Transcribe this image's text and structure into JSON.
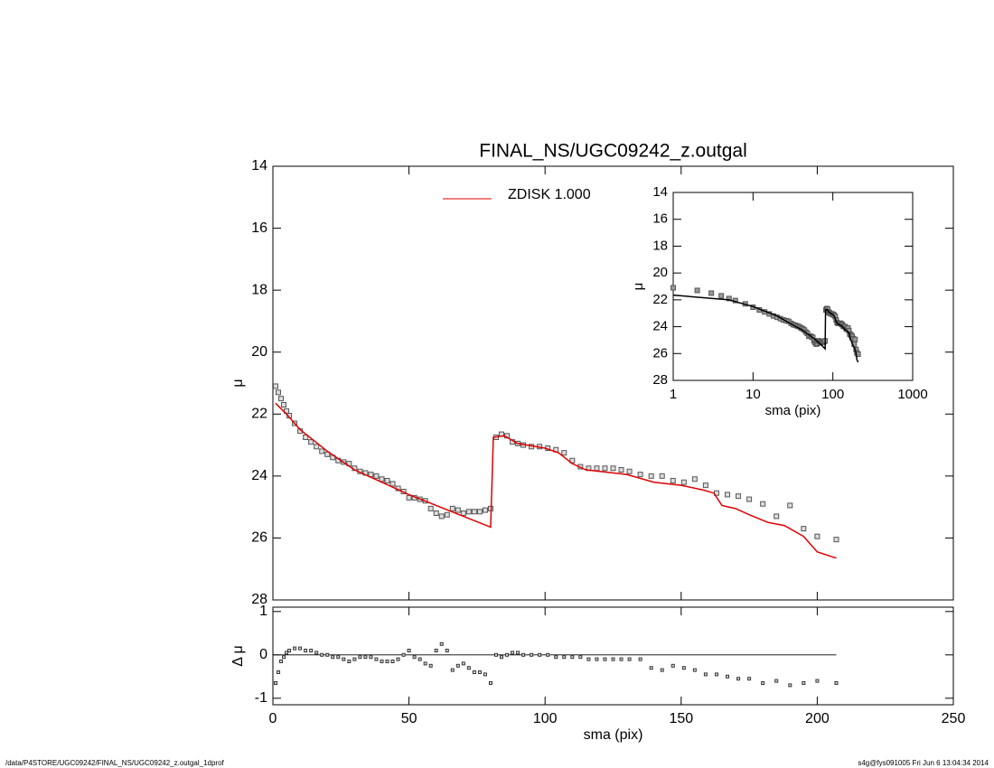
{
  "chart_data": [
    {
      "type": "line",
      "title": "FINAL_NS/UGC09242_z.outgal",
      "y_label": "μ",
      "xlim": [
        0,
        250
      ],
      "xticks": [
        0,
        50,
        100,
        150,
        200,
        250
      ],
      "ylim": [
        28,
        14
      ],
      "yticks": [
        14,
        16,
        18,
        20,
        22,
        24,
        26,
        28
      ],
      "legend": "top",
      "series": [
        {
          "color": "#555555",
          "marker": "square",
          "x": [
            1,
            2,
            3,
            4,
            5,
            6,
            8,
            10,
            12,
            14,
            16,
            18,
            20,
            22,
            24,
            26,
            28,
            30,
            32,
            34,
            36,
            38,
            40,
            42,
            44,
            46,
            48,
            50,
            52,
            54,
            56,
            58,
            60,
            62,
            64,
            66,
            68,
            70,
            72,
            74,
            76,
            78,
            80,
            82,
            84,
            86,
            88,
            90,
            92,
            95,
            98,
            101,
            104,
            107,
            110,
            113,
            116,
            119,
            122,
            125,
            128,
            131,
            135,
            139,
            143,
            147,
            151,
            155,
            159,
            163,
            167,
            171,
            175,
            180,
            185,
            190,
            195,
            200,
            207
          ],
          "values": [
            21.1,
            21.3,
            21.5,
            21.7,
            21.9,
            22.05,
            22.3,
            22.55,
            22.75,
            22.9,
            23.05,
            23.2,
            23.3,
            23.4,
            23.5,
            23.55,
            23.6,
            23.75,
            23.85,
            23.9,
            23.95,
            24.0,
            24.1,
            24.15,
            24.25,
            24.4,
            24.5,
            24.7,
            24.7,
            24.75,
            24.8,
            25.05,
            25.2,
            25.3,
            25.25,
            25.05,
            25.1,
            25.2,
            25.15,
            25.15,
            25.15,
            25.1,
            25.05,
            22.75,
            22.65,
            22.7,
            22.9,
            22.95,
            23.0,
            23.05,
            23.05,
            23.1,
            23.15,
            23.25,
            23.5,
            23.7,
            23.75,
            23.75,
            23.75,
            23.75,
            23.8,
            23.85,
            23.95,
            24.0,
            24.0,
            24.15,
            24.2,
            24.1,
            24.3,
            24.55,
            24.6,
            24.65,
            24.75,
            24.9,
            25.3,
            24.95,
            25.7,
            25.95,
            26.05
          ]
        },
        {
          "name": "ZDISK  1.000",
          "color": "#e00000",
          "x": [
            1,
            5,
            10,
            20,
            30,
            40,
            50,
            60,
            70,
            80,
            81,
            85,
            90,
            100,
            105,
            110,
            115,
            130,
            140,
            150,
            158,
            162,
            165,
            170,
            175,
            182,
            188,
            195,
            200,
            207
          ],
          "values": [
            21.65,
            22.0,
            22.5,
            23.2,
            23.8,
            24.2,
            24.6,
            24.95,
            25.3,
            25.65,
            22.75,
            22.7,
            22.95,
            23.1,
            23.25,
            23.6,
            23.8,
            23.95,
            24.2,
            24.3,
            24.45,
            24.55,
            24.95,
            25.05,
            25.25,
            25.5,
            25.6,
            25.95,
            26.45,
            26.65
          ]
        }
      ]
    },
    {
      "type": "scatter",
      "x_label": "sma (pix)",
      "y_label": "Δ μ",
      "xlim": [
        0,
        250
      ],
      "xticks": [
        0,
        50,
        100,
        150,
        200,
        250
      ],
      "ylim": [
        -1.15,
        1.1
      ],
      "yticks": [
        -1,
        0,
        1
      ],
      "hline": 0,
      "series": [
        {
          "color": "#333333",
          "marker": "square",
          "x": [
            1,
            2,
            3,
            4,
            5,
            6,
            8,
            10,
            12,
            14,
            16,
            18,
            20,
            22,
            24,
            26,
            28,
            30,
            32,
            34,
            36,
            38,
            40,
            42,
            44,
            46,
            48,
            50,
            52,
            54,
            56,
            58,
            60,
            62,
            64,
            66,
            68,
            70,
            72,
            74,
            76,
            78,
            80,
            82,
            84,
            86,
            88,
            90,
            92,
            95,
            98,
            101,
            104,
            107,
            110,
            113,
            116,
            119,
            122,
            125,
            128,
            131,
            135,
            139,
            143,
            147,
            151,
            155,
            159,
            163,
            167,
            171,
            175,
            180,
            185,
            190,
            195,
            200,
            207
          ],
          "values": [
            -0.65,
            -0.4,
            -0.15,
            -0.05,
            0.05,
            0.1,
            0.15,
            0.15,
            0.1,
            0.1,
            0.05,
            0.0,
            0.0,
            -0.05,
            -0.05,
            -0.1,
            -0.15,
            -0.1,
            -0.05,
            -0.05,
            -0.05,
            -0.1,
            -0.15,
            -0.15,
            -0.15,
            -0.1,
            0.0,
            0.1,
            -0.05,
            -0.1,
            -0.2,
            -0.25,
            0.1,
            0.25,
            0.1,
            -0.35,
            -0.25,
            -0.2,
            -0.3,
            -0.4,
            -0.4,
            -0.45,
            -0.65,
            0.0,
            -0.05,
            0.0,
            0.05,
            0.05,
            0.0,
            0.0,
            0.0,
            0.0,
            -0.05,
            -0.05,
            -0.05,
            -0.05,
            -0.1,
            -0.1,
            -0.1,
            -0.1,
            -0.1,
            -0.1,
            -0.1,
            -0.3,
            -0.35,
            -0.25,
            -0.3,
            -0.35,
            -0.45,
            -0.45,
            -0.5,
            -0.55,
            -0.55,
            -0.65,
            -0.6,
            -0.7,
            -0.65,
            -0.6,
            -0.65
          ]
        }
      ]
    },
    {
      "type": "line",
      "xscale": "log",
      "x_label": "sma (pix)",
      "y_label": "μ",
      "xlim": [
        1,
        1000
      ],
      "xticks": [
        1,
        10,
        100,
        1000
      ],
      "ylim": [
        28,
        14
      ],
      "yticks": [
        14,
        16,
        18,
        20,
        22,
        24,
        26,
        28
      ],
      "series": [
        {
          "color": "#555555",
          "marker": "square",
          "x": [
            1,
            2,
            3,
            4,
            5,
            6,
            8,
            10,
            12,
            14,
            16,
            18,
            20,
            22,
            24,
            26,
            28,
            30,
            32,
            34,
            36,
            38,
            40,
            42,
            44,
            46,
            48,
            50,
            52,
            54,
            56,
            58,
            60,
            62,
            64,
            66,
            68,
            70,
            72,
            74,
            76,
            78,
            80,
            82,
            84,
            86,
            88,
            90,
            92,
            95,
            98,
            101,
            104,
            107,
            110,
            113,
            116,
            119,
            122,
            125,
            128,
            131,
            135,
            139,
            143,
            147,
            151,
            155,
            159,
            163,
            167,
            171,
            175,
            180,
            185,
            190,
            195,
            200,
            207
          ],
          "values": [
            21.1,
            21.3,
            21.5,
            21.7,
            21.9,
            22.05,
            22.3,
            22.55,
            22.75,
            22.9,
            23.05,
            23.2,
            23.3,
            23.4,
            23.5,
            23.55,
            23.6,
            23.75,
            23.85,
            23.9,
            23.95,
            24.0,
            24.1,
            24.15,
            24.25,
            24.4,
            24.5,
            24.7,
            24.7,
            24.75,
            24.8,
            25.05,
            25.2,
            25.3,
            25.25,
            25.05,
            25.1,
            25.2,
            25.15,
            25.15,
            25.15,
            25.1,
            25.05,
            22.75,
            22.65,
            22.7,
            22.9,
            22.95,
            23.0,
            23.05,
            23.05,
            23.1,
            23.15,
            23.25,
            23.5,
            23.7,
            23.75,
            23.75,
            23.75,
            23.75,
            23.8,
            23.85,
            23.95,
            24.0,
            24.0,
            24.15,
            24.2,
            24.1,
            24.3,
            24.55,
            24.6,
            24.65,
            24.75,
            24.9,
            25.3,
            24.95,
            25.7,
            25.95,
            26.05
          ]
        },
        {
          "color": "#000000",
          "x": [
            1,
            5,
            10,
            20,
            30,
            40,
            50,
            60,
            70,
            80,
            81,
            85,
            90,
            100,
            105,
            110,
            115,
            130,
            140,
            150,
            158,
            162,
            165,
            170,
            175,
            182,
            188,
            195,
            200,
            207
          ],
          "values": [
            21.65,
            22.0,
            22.5,
            23.2,
            23.8,
            24.2,
            24.6,
            24.95,
            25.3,
            25.65,
            22.75,
            22.7,
            22.95,
            23.1,
            23.25,
            23.6,
            23.8,
            23.95,
            24.2,
            24.3,
            24.45,
            24.55,
            24.95,
            25.05,
            25.25,
            25.5,
            25.6,
            25.95,
            26.45,
            26.65
          ]
        }
      ]
    }
  ],
  "footer": {
    "left": "/data/P4STORE/UGC09242/FINAL_NS/UGC09242_z.outgal_1dprof",
    "right": "s4g@fys091005  Fri Jun  6 13:04:34 2014"
  }
}
